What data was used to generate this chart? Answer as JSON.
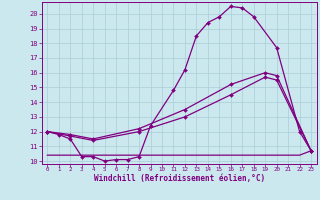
{
  "xlabel": "Windchill (Refroidissement éolien,°C)",
  "bg_color": "#cce8ef",
  "grid_color": "#aacdd8",
  "line_color": "#800080",
  "xlim": [
    -0.5,
    23.5
  ],
  "ylim": [
    9.8,
    20.8
  ],
  "yticks": [
    10,
    11,
    12,
    13,
    14,
    15,
    16,
    17,
    18,
    19,
    20
  ],
  "xticks": [
    0,
    1,
    2,
    3,
    4,
    5,
    6,
    7,
    8,
    9,
    10,
    11,
    12,
    13,
    14,
    15,
    16,
    17,
    18,
    19,
    20,
    21,
    22,
    23
  ],
  "line1_x": [
    0,
    1,
    2,
    3,
    4,
    5,
    6,
    7,
    8,
    9,
    11,
    12,
    13,
    14,
    15,
    16,
    17,
    18,
    20,
    22,
    23
  ],
  "line1_y": [
    12.0,
    11.8,
    11.5,
    10.3,
    10.3,
    10.0,
    10.1,
    10.1,
    10.3,
    12.4,
    14.8,
    16.2,
    18.5,
    19.4,
    19.8,
    20.5,
    20.4,
    19.8,
    17.7,
    12.0,
    10.7
  ],
  "line2_x": [
    0,
    2,
    4,
    8,
    12,
    16,
    19,
    20,
    23
  ],
  "line2_y": [
    12.0,
    11.8,
    11.5,
    12.2,
    13.5,
    15.2,
    16.0,
    15.8,
    10.7
  ],
  "line3_x": [
    0,
    2,
    4,
    8,
    12,
    16,
    19,
    20,
    23
  ],
  "line3_y": [
    12.0,
    11.7,
    11.4,
    12.0,
    13.0,
    14.5,
    15.7,
    15.5,
    10.7
  ],
  "line4_x": [
    0,
    1,
    2,
    3,
    4,
    5,
    6,
    7,
    8,
    9,
    10,
    11,
    12,
    13,
    14,
    15,
    16,
    17,
    18,
    19,
    20,
    21,
    22,
    23
  ],
  "line4_y": [
    10.4,
    10.4,
    10.4,
    10.4,
    10.4,
    10.4,
    10.4,
    10.4,
    10.4,
    10.4,
    10.4,
    10.4,
    10.4,
    10.4,
    10.4,
    10.4,
    10.4,
    10.4,
    10.4,
    10.4,
    10.4,
    10.4,
    10.4,
    10.7
  ]
}
